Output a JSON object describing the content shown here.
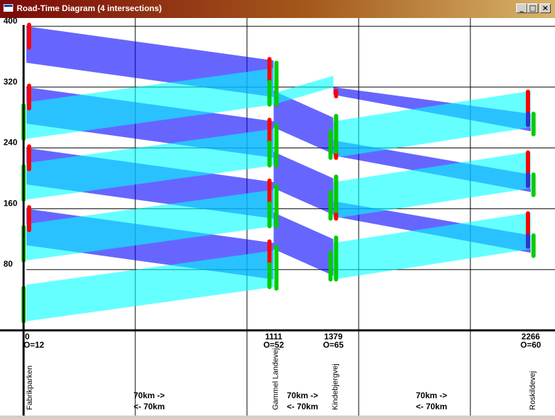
{
  "window": {
    "title": "Road-Time Diagram (4 intersections)",
    "minimize_label": "_",
    "maximize_label": "□",
    "close_label": "×"
  },
  "chart_data": {
    "type": "time-space",
    "x_label": "",
    "y_label": "",
    "y_ticks": [
      80,
      160,
      240,
      320,
      400
    ],
    "ylim": [
      0,
      410
    ],
    "xlim": [
      0,
      2266
    ],
    "intersections": [
      {
        "name": "Fabrikparken",
        "position": 0,
        "position_label": "0",
        "offset_label": "O=12"
      },
      {
        "name": "Gammel Landevej",
        "position": 1111,
        "position_label": "1111",
        "offset_label": "O=52"
      },
      {
        "name": "Kindebjergvej",
        "position": 1379,
        "position_label": "1379",
        "offset_label": "O=65"
      },
      {
        "name": "Roskildevej",
        "position": 2266,
        "position_label": "2266",
        "offset_label": "O=60"
      }
    ],
    "segments": [
      {
        "forward": "70km ->",
        "backward": "<- 70km"
      },
      {
        "forward": "70km ->",
        "backward": "<- 70km"
      },
      {
        "forward": "70km ->",
        "backward": "<- 70km"
      }
    ],
    "series": [
      {
        "color": "#0000ff",
        "bands": [
          {
            "x0": 0,
            "y0_top": 400,
            "y0_bot": 352,
            "x1": 1111,
            "y1_top": 355,
            "y1_bot": 307
          },
          {
            "x0": 0,
            "y0_top": 320,
            "y0_bot": 272,
            "x1": 1111,
            "y1_top": 275,
            "y1_bot": 227
          },
          {
            "x0": 0,
            "y0_top": 240,
            "y0_bot": 192,
            "x1": 1111,
            "y1_top": 195,
            "y1_bot": 147
          },
          {
            "x0": 0,
            "y0_top": 160,
            "y0_bot": 112,
            "x1": 1111,
            "y1_top": 115,
            "y1_bot": 67
          },
          {
            "x0": 1111,
            "y0_top": 315,
            "y0_bot": 267,
            "x1": 1379,
            "y1_top": 280,
            "y1_bot": 232
          },
          {
            "x0": 1111,
            "y0_top": 235,
            "y0_bot": 187,
            "x1": 1379,
            "y1_top": 200,
            "y1_bot": 152
          },
          {
            "x0": 1111,
            "y0_top": 155,
            "y0_bot": 107,
            "x1": 1379,
            "y1_top": 120,
            "y1_bot": 72
          },
          {
            "x0": 1379,
            "y0_top": 320,
            "y0_bot": 310,
            "x1": 2266,
            "y1_top": 285,
            "y1_bot": 262
          },
          {
            "x0": 1379,
            "y0_top": 250,
            "y0_bot": 230,
            "x1": 2266,
            "y1_top": 205,
            "y1_bot": 182
          },
          {
            "x0": 1379,
            "y0_top": 170,
            "y0_bot": 150,
            "x1": 2266,
            "y1_top": 125,
            "y1_bot": 102
          }
        ]
      },
      {
        "color": "#00ffff",
        "bands": [
          {
            "x0": 0,
            "y0_top": 60,
            "y0_bot": 12,
            "x1": 1111,
            "y1_top": 105,
            "y1_bot": 57
          },
          {
            "x0": 0,
            "y0_top": 140,
            "y0_bot": 92,
            "x1": 1111,
            "y1_top": 185,
            "y1_bot": 137
          },
          {
            "x0": 0,
            "y0_top": 220,
            "y0_bot": 172,
            "x1": 1111,
            "y1_top": 265,
            "y1_bot": 217
          },
          {
            "x0": 0,
            "y0_top": 300,
            "y0_bot": 252,
            "x1": 1111,
            "y1_top": 345,
            "y1_bot": 297
          },
          {
            "x0": 1111,
            "y0_top": 312,
            "y0_bot": 297,
            "x1": 1379,
            "y1_top": 335,
            "y1_bot": 320
          },
          {
            "x0": 1379,
            "y0_top": 115,
            "y0_bot": 67,
            "x1": 2266,
            "y1_top": 155,
            "y1_bot": 107
          },
          {
            "x0": 1379,
            "y0_top": 195,
            "y0_bot": 147,
            "x1": 2266,
            "y1_top": 235,
            "y1_bot": 187
          },
          {
            "x0": 1379,
            "y0_top": 275,
            "y0_bot": 227,
            "x1": 2266,
            "y1_top": 315,
            "y1_bot": 267
          }
        ]
      }
    ],
    "signals": [
      {
        "x": 0,
        "dx": 4,
        "color": "#ff0000",
        "y0": 372,
        "y1": 402
      },
      {
        "x": 0,
        "dx": 4,
        "color": "#ff0000",
        "y0": 292,
        "y1": 322
      },
      {
        "x": 0,
        "dx": 4,
        "color": "#ff0000",
        "y0": 212,
        "y1": 242
      },
      {
        "x": 0,
        "dx": 4,
        "color": "#ff0000",
        "y0": 132,
        "y1": 162
      },
      {
        "x": 0,
        "dx": -4,
        "color": "#00cc00",
        "y0": 12,
        "y1": 56
      },
      {
        "x": 0,
        "dx": -4,
        "color": "#00cc00",
        "y0": 92,
        "y1": 136
      },
      {
        "x": 0,
        "dx": -4,
        "color": "#00cc00",
        "y0": 172,
        "y1": 216
      },
      {
        "x": 0,
        "dx": -4,
        "color": "#00cc00",
        "y0": 252,
        "y1": 296
      },
      {
        "x": 1111,
        "dx": -6,
        "color": "#ff0000",
        "y0": 325,
        "y1": 357
      },
      {
        "x": 1111,
        "dx": -6,
        "color": "#ff0000",
        "y0": 245,
        "y1": 277
      },
      {
        "x": 1111,
        "dx": -6,
        "color": "#ff0000",
        "y0": 165,
        "y1": 197
      },
      {
        "x": 1111,
        "dx": -6,
        "color": "#ff0000",
        "y0": 85,
        "y1": 117
      },
      {
        "x": 1111,
        "dx": -6,
        "color": "#00cc00",
        "y0": 297,
        "y1": 327
      },
      {
        "x": 1111,
        "dx": -6,
        "color": "#00cc00",
        "y0": 217,
        "y1": 247
      },
      {
        "x": 1111,
        "dx": -6,
        "color": "#00cc00",
        "y0": 137,
        "y1": 167
      },
      {
        "x": 1111,
        "dx": -6,
        "color": "#00cc00",
        "y0": 57,
        "y1": 87
      },
      {
        "x": 1111,
        "dx": 4,
        "color": "#ff0000",
        "y0": 297,
        "y1": 327
      },
      {
        "x": 1111,
        "dx": 4,
        "color": "#ff0000",
        "y0": 217,
        "y1": 247
      },
      {
        "x": 1111,
        "dx": 4,
        "color": "#ff0000",
        "y0": 137,
        "y1": 167
      },
      {
        "x": 1111,
        "dx": 4,
        "color": "#00cc00",
        "y0": 297,
        "y1": 352
      },
      {
        "x": 1111,
        "dx": 4,
        "color": "#00cc00",
        "y0": 217,
        "y1": 270
      },
      {
        "x": 1111,
        "dx": 4,
        "color": "#00cc00",
        "y0": 137,
        "y1": 190
      },
      {
        "x": 1111,
        "dx": 4,
        "color": "#00cc00",
        "y0": 55,
        "y1": 110
      },
      {
        "x": 1379,
        "dx": -4,
        "color": "#00cc00",
        "y0": 227,
        "y1": 262
      },
      {
        "x": 1379,
        "dx": -4,
        "color": "#00cc00",
        "y0": 147,
        "y1": 182
      },
      {
        "x": 1379,
        "dx": -4,
        "color": "#00cc00",
        "y0": 67,
        "y1": 102
      },
      {
        "x": 1379,
        "dx": 4,
        "color": "#ff0000",
        "y0": 227,
        "y1": 282
      },
      {
        "x": 1379,
        "dx": 4,
        "color": "#ff0000",
        "y0": 147,
        "y1": 202
      },
      {
        "x": 1379,
        "dx": 4,
        "color": "#00cc00",
        "y0": 235,
        "y1": 282
      },
      {
        "x": 1379,
        "dx": 4,
        "color": "#00cc00",
        "y0": 157,
        "y1": 202
      },
      {
        "x": 1379,
        "dx": 4,
        "color": "#00cc00",
        "y0": 67,
        "y1": 122
      },
      {
        "x": 1379,
        "dx": 4,
        "color": "#ff0000",
        "y0": 308,
        "y1": 315
      },
      {
        "x": 2266,
        "dx": -4,
        "color": "#ff0000",
        "y0": 282,
        "y1": 314
      },
      {
        "x": 2266,
        "dx": -4,
        "color": "#ff0000",
        "y0": 202,
        "y1": 234
      },
      {
        "x": 2266,
        "dx": -4,
        "color": "#ff0000",
        "y0": 122,
        "y1": 154
      },
      {
        "x": 2266,
        "dx": -4,
        "color": "#3333cc",
        "y0": 270,
        "y1": 285
      },
      {
        "x": 2266,
        "dx": -4,
        "color": "#3333cc",
        "y0": 190,
        "y1": 205
      },
      {
        "x": 2266,
        "dx": -4,
        "color": "#3333cc",
        "y0": 110,
        "y1": 125
      },
      {
        "x": 2266,
        "dx": 4,
        "color": "#00cc00",
        "y0": 258,
        "y1": 285
      },
      {
        "x": 2266,
        "dx": 4,
        "color": "#00cc00",
        "y0": 178,
        "y1": 205
      },
      {
        "x": 2266,
        "dx": 4,
        "color": "#00cc00",
        "y0": 98,
        "y1": 125
      }
    ],
    "grid": true
  }
}
